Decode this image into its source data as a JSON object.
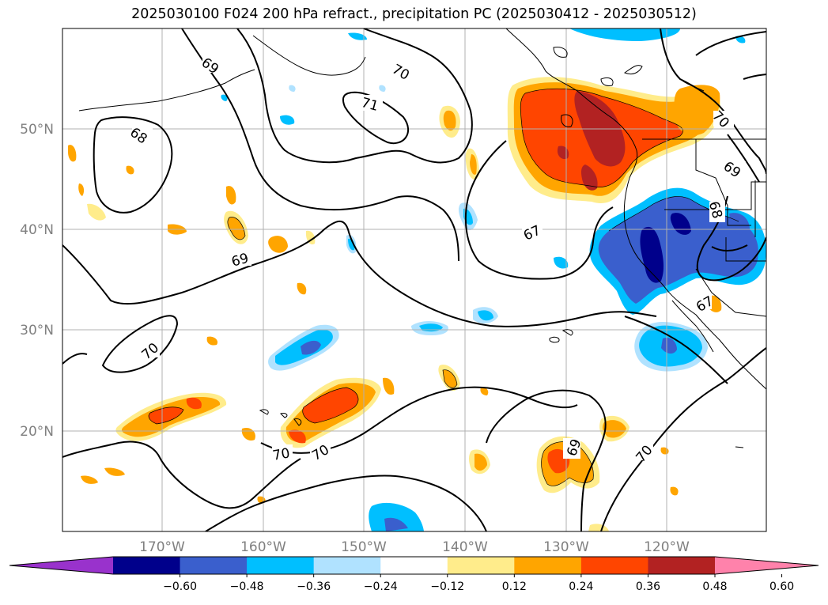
{
  "title": "2025030100 F024 200 hPa refract., precipitation PC (2025030412 - 2025030512)",
  "map": {
    "lat_labels": [
      "50°N",
      "40°N",
      "30°N",
      "20°N"
    ],
    "lon_labels": [
      "170°W",
      "160°W",
      "150°W",
      "140°W",
      "130°W",
      "120°W"
    ],
    "gridline_color": "#b0b0b0",
    "contour_labels": [
      "69",
      "70",
      "71",
      "68",
      "69",
      "67",
      "70",
      "69",
      "68",
      "70",
      "70",
      "70",
      "69",
      "70",
      "67"
    ]
  },
  "colorbar": {
    "ticks": [
      "−0.60",
      "−0.48",
      "−0.36",
      "−0.24",
      "−0.12",
      "0.12",
      "0.24",
      "0.36",
      "0.48",
      "0.60"
    ],
    "colors": [
      "#9932cc",
      "#00008b",
      "#3a5fcd",
      "#00bfff",
      "#b0e2ff",
      "#ffffff",
      "#ffec8b",
      "#ffa500",
      "#ff4500",
      "#b22222",
      "#ff82ab"
    ]
  }
}
